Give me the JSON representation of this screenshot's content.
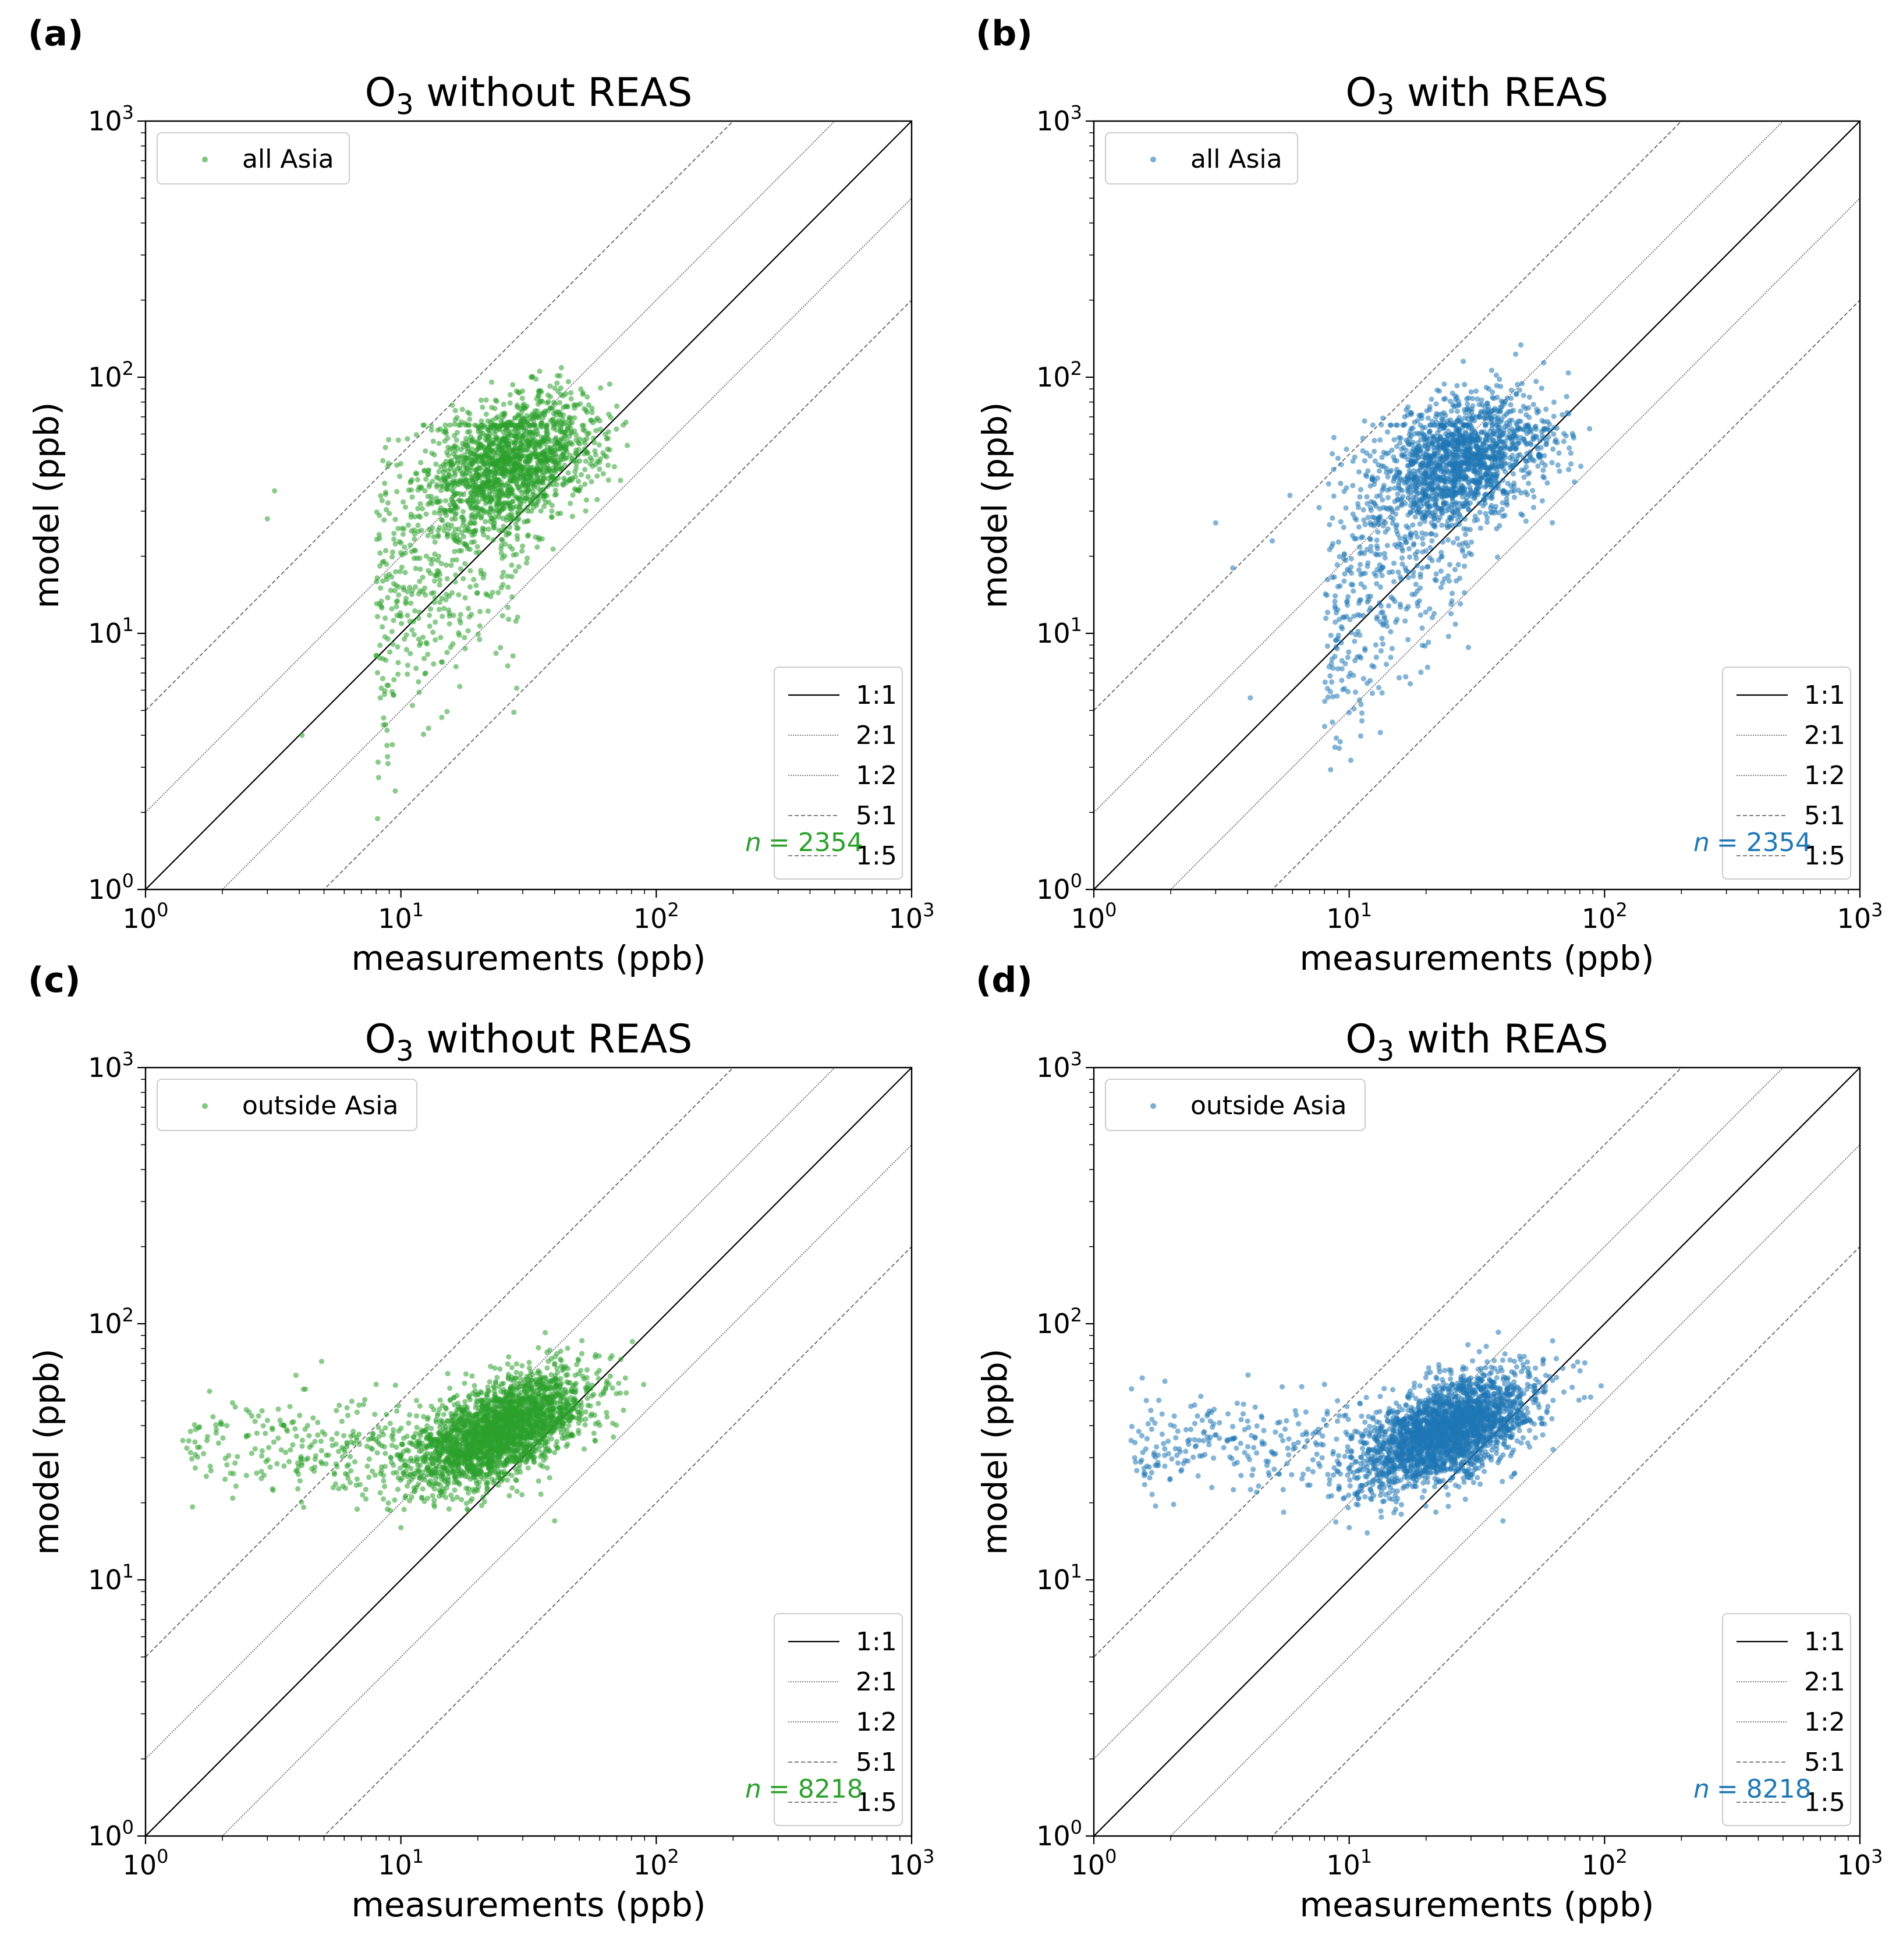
{
  "colors": {
    "green": "#2ca02c",
    "blue": "#1f77b4",
    "axis": "#000000",
    "ref_line": "#000000",
    "ref_dash": "#555555"
  },
  "chart_data": [
    {
      "panel": "(a)",
      "type": "scatter",
      "scale": "log-log",
      "title_main": "O",
      "title_sub": "3",
      "title_rest": " without REAS",
      "xlabel": "measurements (ppb)",
      "ylabel": "model (ppb)",
      "xlim": [
        1,
        1000
      ],
      "ylim": [
        1,
        1000
      ],
      "ticks": [
        {
          "base": "10",
          "exp": "0"
        },
        {
          "base": "10",
          "exp": "1"
        },
        {
          "base": "10",
          "exp": "2"
        },
        {
          "base": "10",
          "exp": "3"
        }
      ],
      "series_label": "all Asia",
      "series_color": "#2ca02c",
      "n_text": "= 2354",
      "n_value": 2354,
      "cloud": {
        "xc": 28,
        "yc": 47,
        "sx": 0.17,
        "sy": 0.13,
        "rho": 0.35,
        "core": 1500
      },
      "tail": {
        "xmin": 8,
        "xmax": 30,
        "count": 500
      },
      "outliers": [
        [
          3,
          28
        ],
        [
          3.2,
          36
        ],
        [
          4.1,
          4
        ],
        [
          8.9,
          3.1
        ],
        [
          8.7,
          4.4
        ],
        [
          12.5,
          7
        ],
        [
          17,
          6.2
        ]
      ],
      "ref_lines": [
        {
          "label": "1:1",
          "factor": 1,
          "style": "solid"
        },
        {
          "label": "2:1",
          "factor": 2,
          "style": "dotted"
        },
        {
          "label": "1:2",
          "factor": 0.5,
          "style": "dotted"
        },
        {
          "label": "5:1",
          "factor": 5,
          "style": "dashed"
        },
        {
          "label": "1:5",
          "factor": 0.2,
          "style": "dashed"
        }
      ]
    },
    {
      "panel": "(b)",
      "type": "scatter",
      "scale": "log-log",
      "title_main": "O",
      "title_sub": "3",
      "title_rest": " with REAS",
      "xlabel": "measurements (ppb)",
      "ylabel": "model (ppb)",
      "xlim": [
        1,
        1000
      ],
      "ylim": [
        1,
        1000
      ],
      "ticks": [
        {
          "base": "10",
          "exp": "0"
        },
        {
          "base": "10",
          "exp": "1"
        },
        {
          "base": "10",
          "exp": "2"
        },
        {
          "base": "10",
          "exp": "3"
        }
      ],
      "series_label": "all Asia",
      "series_color": "#1f77b4",
      "n_text": "= 2354",
      "n_value": 2354,
      "cloud": {
        "xc": 28,
        "yc": 47,
        "sx": 0.17,
        "sy": 0.13,
        "rho": 0.35,
        "core": 1500
      },
      "tail": {
        "xmin": 8,
        "xmax": 30,
        "count": 500
      },
      "outliers": [
        [
          3,
          27
        ],
        [
          3.5,
          18
        ],
        [
          4.1,
          5.6
        ],
        [
          8.9,
          3.9
        ],
        [
          8.6,
          4.5
        ],
        [
          12.5,
          7.4
        ]
      ],
      "ref_lines": [
        {
          "label": "1:1",
          "factor": 1,
          "style": "solid"
        },
        {
          "label": "2:1",
          "factor": 2,
          "style": "dotted"
        },
        {
          "label": "1:2",
          "factor": 0.5,
          "style": "dotted"
        },
        {
          "label": "5:1",
          "factor": 5,
          "style": "dashed"
        },
        {
          "label": "1:5",
          "factor": 0.2,
          "style": "dashed"
        }
      ]
    },
    {
      "panel": "(c)",
      "type": "scatter",
      "scale": "log-log",
      "title_main": "O",
      "title_sub": "3",
      "title_rest": " without REAS",
      "xlabel": "measurements (ppb)",
      "ylabel": "model (ppb)",
      "xlim": [
        1,
        1000
      ],
      "ylim": [
        1,
        1000
      ],
      "ticks": [
        {
          "base": "10",
          "exp": "0"
        },
        {
          "base": "10",
          "exp": "1"
        },
        {
          "base": "10",
          "exp": "2"
        },
        {
          "base": "10",
          "exp": "3"
        }
      ],
      "series_label": "outside Asia",
      "series_color": "#2ca02c",
      "n_text": "= 8218",
      "n_value": 8218,
      "cloud": {
        "xc": 24,
        "yc": 38,
        "sx": 0.17,
        "sy": 0.11,
        "rho": 0.55,
        "core": 2600
      },
      "tail": {
        "xmin": 1.4,
        "xmax": 12,
        "count": 260
      },
      "outliers": [
        [
          1.4,
          35
        ],
        [
          1.5,
          38
        ],
        [
          8,
          58
        ],
        [
          40,
          17
        ],
        [
          10,
          16
        ]
      ],
      "ref_lines": [
        {
          "label": "1:1",
          "factor": 1,
          "style": "solid"
        },
        {
          "label": "2:1",
          "factor": 2,
          "style": "dotted"
        },
        {
          "label": "1:2",
          "factor": 0.5,
          "style": "dotted"
        },
        {
          "label": "5:1",
          "factor": 5,
          "style": "dashed"
        },
        {
          "label": "1:5",
          "factor": 0.2,
          "style": "dashed"
        }
      ]
    },
    {
      "panel": "(d)",
      "type": "scatter",
      "scale": "log-log",
      "title_main": "O",
      "title_sub": "3",
      "title_rest": " with REAS",
      "xlabel": "measurements (ppb)",
      "ylabel": "model (ppb)",
      "xlim": [
        1,
        1000
      ],
      "ylim": [
        1,
        1000
      ],
      "ticks": [
        {
          "base": "10",
          "exp": "0"
        },
        {
          "base": "10",
          "exp": "1"
        },
        {
          "base": "10",
          "exp": "2"
        },
        {
          "base": "10",
          "exp": "3"
        }
      ],
      "series_label": "outside Asia",
      "series_color": "#1f77b4",
      "n_text": "= 8218",
      "n_value": 8218,
      "cloud": {
        "xc": 24,
        "yc": 38,
        "sx": 0.17,
        "sy": 0.11,
        "rho": 0.55,
        "core": 2600
      },
      "tail": {
        "xmin": 1.4,
        "xmax": 12,
        "count": 260
      },
      "outliers": [
        [
          1.4,
          35
        ],
        [
          1.5,
          38
        ],
        [
          8,
          58
        ],
        [
          40,
          17
        ],
        [
          10,
          16
        ]
      ],
      "ref_lines": [
        {
          "label": "1:1",
          "factor": 1,
          "style": "solid"
        },
        {
          "label": "2:1",
          "factor": 2,
          "style": "dotted"
        },
        {
          "label": "1:2",
          "factor": 0.5,
          "style": "dotted"
        },
        {
          "label": "5:1",
          "factor": 5,
          "style": "dashed"
        },
        {
          "label": "1:5",
          "factor": 0.2,
          "style": "dashed"
        }
      ]
    }
  ]
}
